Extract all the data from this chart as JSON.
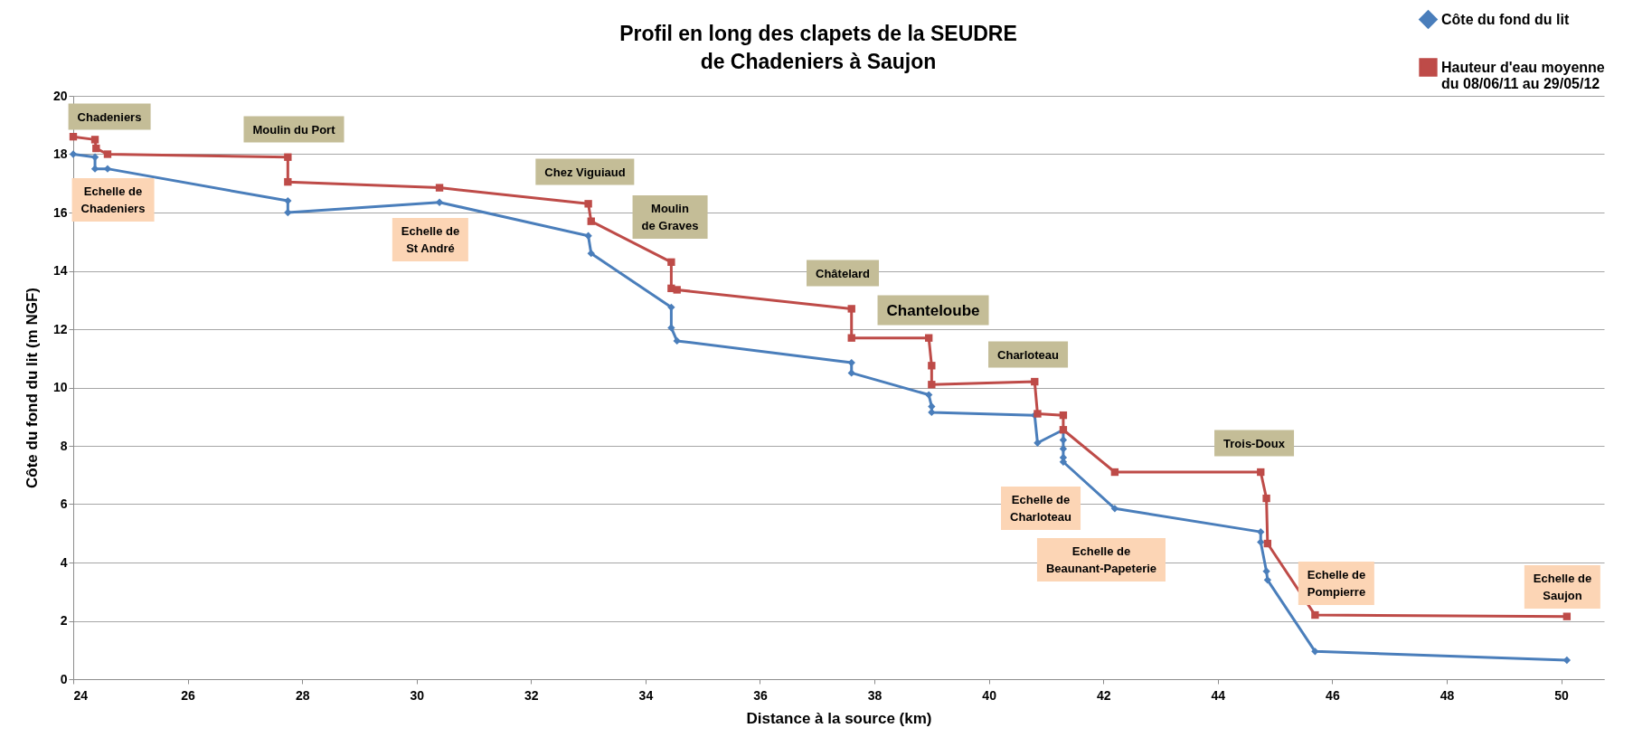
{
  "chart_data": {
    "type": "line",
    "title": "Profil en long des clapets de la SEUDRE\nde Chadeniers à Saujon",
    "xlabel": "Distance à la source (km)",
    "ylabel": "Côte du fond du lit (m NGF)",
    "xlim": [
      24,
      50.75
    ],
    "xticks": [
      24,
      26,
      28,
      30,
      32,
      34,
      36,
      38,
      40,
      42,
      44,
      46,
      48,
      50
    ],
    "ylim": [
      0,
      20
    ],
    "yticks": [
      0,
      2,
      4,
      6,
      8,
      10,
      12,
      14,
      16,
      18,
      20
    ],
    "grid": "y",
    "legend": "top right",
    "series": [
      {
        "name": "Côte du fond du lit",
        "color": "#4a7ebb",
        "marker": "diamond",
        "x": [
          24,
          24.38,
          24.38,
          24.6,
          27.75,
          27.75,
          30.4,
          33.0,
          33.05,
          34.45,
          34.45,
          34.55,
          37.6,
          37.6,
          38.95,
          39.0,
          39.0,
          40.8,
          40.85,
          41.3,
          41.3,
          41.3,
          41.3,
          41.3,
          42.2,
          44.75,
          44.75,
          44.85,
          44.87,
          45.7,
          50.1
        ],
        "values": [
          18.0,
          17.9,
          17.5,
          17.5,
          16.4,
          16.0,
          16.35,
          15.2,
          14.6,
          12.75,
          12.05,
          11.6,
          10.85,
          10.5,
          9.75,
          9.35,
          9.15,
          9.05,
          8.1,
          8.55,
          8.2,
          7.9,
          7.6,
          7.45,
          5.85,
          5.05,
          4.7,
          3.7,
          3.4,
          0.95,
          0.65
        ]
      },
      {
        "name": "Hauteur d'eau moyenne\ndu 08/06/11 au 29/05/12",
        "color": "#be4b48",
        "marker": "square",
        "x": [
          24,
          24.38,
          24.4,
          24.6,
          27.75,
          27.75,
          30.4,
          33.0,
          33.05,
          34.45,
          34.45,
          34.55,
          37.6,
          37.6,
          38.95,
          39.0,
          39.0,
          40.8,
          40.85,
          41.3,
          41.3,
          42.2,
          44.75,
          44.85,
          44.87,
          45.7,
          50.1
        ],
        "values": [
          18.6,
          18.5,
          18.2,
          18.0,
          17.9,
          17.05,
          16.85,
          16.3,
          15.7,
          14.3,
          13.4,
          13.35,
          12.7,
          11.7,
          11.7,
          10.75,
          10.1,
          10.2,
          9.1,
          9.05,
          8.55,
          7.1,
          7.1,
          6.2,
          4.65,
          2.2,
          2.15
        ]
      }
    ],
    "annotations": [
      "Chadeniers",
      "Moulin du Port",
      "Chez Viguiaud",
      "Moulin\nde Graves",
      "Châtelard",
      "Chanteloube",
      "Charloteau",
      "Trois-Doux",
      "Echelle de\nChadeniers",
      "Echelle de\nSt André",
      "Echelle de\nCharloteau",
      "Echelle de\nBeaunant-Papeterie",
      "Echelle de\nPompierre",
      "Echelle de\nSaujon"
    ]
  }
}
